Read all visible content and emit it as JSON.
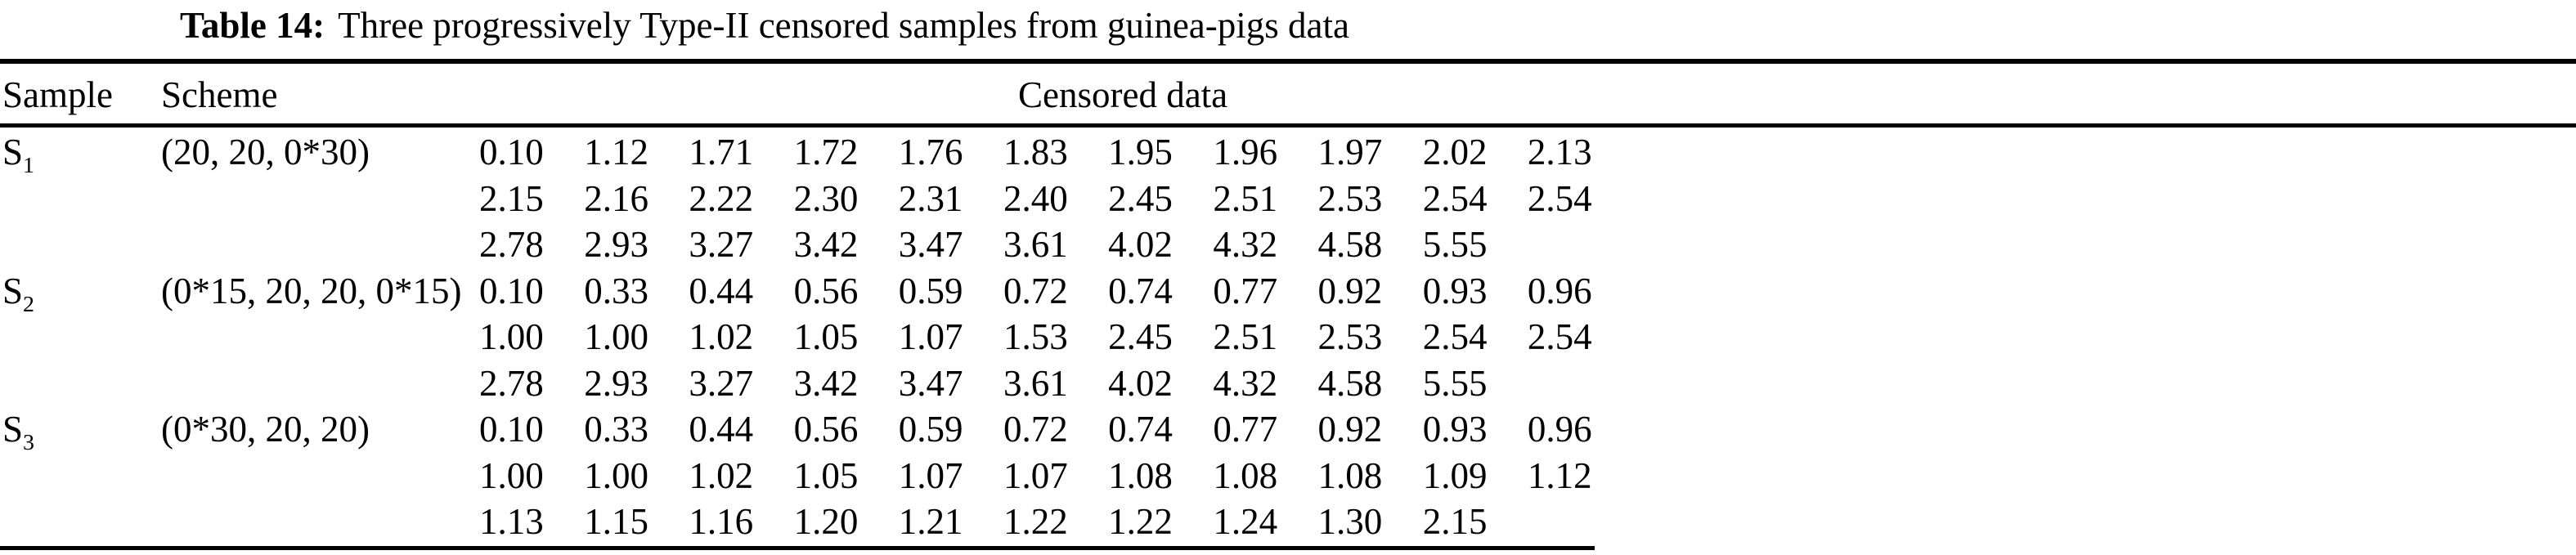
{
  "page": {
    "background_color": "#ffffff",
    "text_color": "#000000"
  },
  "title": {
    "label": "Table 14:",
    "text": "Three progressively Type-II censored samples from guinea-pigs data"
  },
  "table": {
    "headers": {
      "sample": "Sample",
      "scheme": "Scheme",
      "censored_data": "Censored data"
    },
    "samples": [
      {
        "name": "S",
        "sub": "1",
        "scheme": "(20, 20, 0*30)",
        "rows": [
          [
            "0.10",
            "1.12",
            "1.71",
            "1.72",
            "1.76",
            "1.83",
            "1.95",
            "1.96",
            "1.97",
            "2.02",
            "2.13"
          ],
          [
            "2.15",
            "2.16",
            "2.22",
            "2.30",
            "2.31",
            "2.40",
            "2.45",
            "2.51",
            "2.53",
            "2.54",
            "2.54"
          ],
          [
            "2.78",
            "2.93",
            "3.27",
            "3.42",
            "3.47",
            "3.61",
            "4.02",
            "4.32",
            "4.58",
            "5.55"
          ]
        ]
      },
      {
        "name": "S",
        "sub": "2",
        "scheme": "(0*15, 20, 20, 0*15)",
        "rows": [
          [
            "0.10",
            "0.33",
            "0.44",
            "0.56",
            "0.59",
            "0.72",
            "0.74",
            "0.77",
            "0.92",
            "0.93",
            "0.96"
          ],
          [
            "1.00",
            "1.00",
            "1.02",
            "1.05",
            "1.07",
            "1.53",
            "2.45",
            "2.51",
            "2.53",
            "2.54",
            "2.54"
          ],
          [
            "2.78",
            "2.93",
            "3.27",
            "3.42",
            "3.47",
            "3.61",
            "4.02",
            "4.32",
            "4.58",
            "5.55"
          ]
        ]
      },
      {
        "name": "S",
        "sub": "3",
        "scheme": "(0*30, 20, 20)",
        "rows": [
          [
            "0.10",
            "0.33",
            "0.44",
            "0.56",
            "0.59",
            "0.72",
            "0.74",
            "0.77",
            "0.92",
            "0.93",
            "0.96"
          ],
          [
            "1.00",
            "1.00",
            "1.02",
            "1.05",
            "1.07",
            "1.07",
            "1.08",
            "1.08",
            "1.08",
            "1.09",
            "1.12"
          ],
          [
            "1.13",
            "1.15",
            "1.16",
            "1.20",
            "1.21",
            "1.22",
            "1.22",
            "1.24",
            "1.30",
            "2.15"
          ]
        ]
      }
    ]
  }
}
